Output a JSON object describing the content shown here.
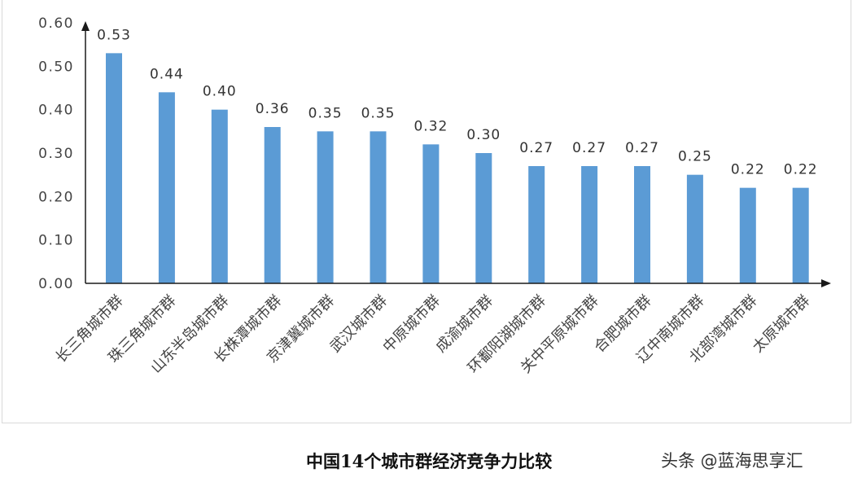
{
  "chart_data": {
    "type": "bar",
    "categories": [
      "长三角城市群",
      "珠三角城市群",
      "山东半岛城市群",
      "长株潭城市群",
      "京津冀城市群",
      "武汉城市群",
      "中原城市群",
      "成渝城市群",
      "环鄱阳湖城市群",
      "关中平原城市群",
      "合肥城市群",
      "辽中南城市群",
      "北部湾城市群",
      "太原城市群"
    ],
    "values": [
      0.53,
      0.44,
      0.4,
      0.36,
      0.35,
      0.35,
      0.32,
      0.3,
      0.27,
      0.27,
      0.27,
      0.25,
      0.22,
      0.22
    ],
    "data_labels": [
      "0.53",
      "0.44",
      "0.40",
      "0.36",
      "0.35",
      "0.35",
      "0.32",
      "0.30",
      "0.27",
      "0.27",
      "0.27",
      "0.25",
      "0.22",
      "0.22"
    ],
    "yticks": [
      "0.00",
      "0.10",
      "0.20",
      "0.30",
      "0.40",
      "0.50",
      "0.60"
    ],
    "ylim": [
      0,
      0.6
    ],
    "grid": false,
    "legend": "none",
    "bar_color": "#5b9bd5",
    "axis_color": "#1a1a1a",
    "title": "",
    "xlabel": "",
    "ylabel": ""
  },
  "caption": {
    "title": "中国14个城市群经济竞争力比较",
    "watermark": "头条 @蓝海思享汇"
  }
}
